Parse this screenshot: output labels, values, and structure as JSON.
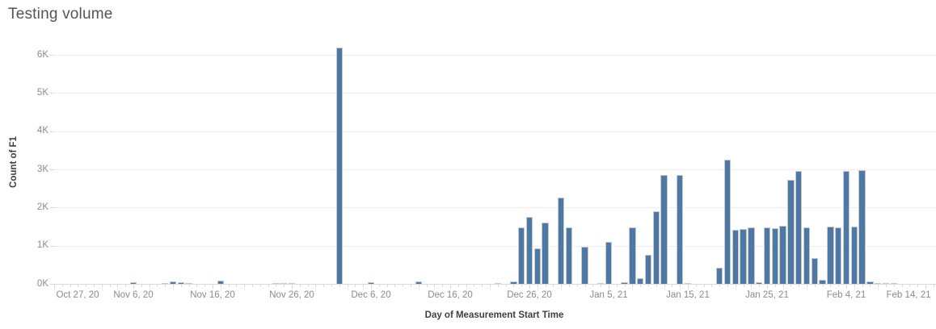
{
  "title": "Testing volume",
  "colors": {
    "bar_fill": "#4e79a7",
    "bar_border": "#c9c9c9",
    "gridline": "#efefef",
    "axis_line": "#d9d9d9",
    "tick_label": "#8b8b8b",
    "axis_title": "#3f3f3f",
    "title": "#545454"
  },
  "chart_data": {
    "type": "bar",
    "title": "Testing volume",
    "xlabel": "Day of Measurement Start Time",
    "ylabel": "Count of F1",
    "x_axis_type": "date",
    "x_start_date": "2020-10-27",
    "x_end_date": "2021-02-15",
    "ylim": [
      0,
      6530
    ],
    "grid": "horizontal",
    "legend": "none",
    "y_ticks": [
      {
        "value": 0,
        "label": "0K"
      },
      {
        "value": 1000,
        "label": "1K"
      },
      {
        "value": 2000,
        "label": "2K"
      },
      {
        "value": 3000,
        "label": "3K"
      },
      {
        "value": 4000,
        "label": "4K"
      },
      {
        "value": 5000,
        "label": "5K"
      },
      {
        "value": 6000,
        "label": "6K"
      }
    ],
    "x_ticks": [
      {
        "date": "2020-10-27",
        "label": "Oct 27, 20"
      },
      {
        "date": "2020-11-06",
        "label": "Nov 6, 20"
      },
      {
        "date": "2020-11-16",
        "label": "Nov 16, 20"
      },
      {
        "date": "2020-11-26",
        "label": "Nov 26, 20"
      },
      {
        "date": "2020-12-06",
        "label": "Dec 6, 20"
      },
      {
        "date": "2020-12-16",
        "label": "Dec 16, 20"
      },
      {
        "date": "2020-12-26",
        "label": "Dec 26, 20"
      },
      {
        "date": "2021-01-05",
        "label": "Jan 5, 21"
      },
      {
        "date": "2021-01-15",
        "label": "Jan 15, 21"
      },
      {
        "date": "2021-01-25",
        "label": "Jan 25, 21"
      },
      {
        "date": "2021-02-04",
        "label": "Feb 4, 21"
      },
      {
        "date": "2021-02-14",
        "label": "Feb 14, 21"
      }
    ],
    "bars": [
      {
        "date": "2020-11-06",
        "value": 45
      },
      {
        "date": "2020-11-10",
        "value": 20
      },
      {
        "date": "2020-11-11",
        "value": 65
      },
      {
        "date": "2020-11-12",
        "value": 50
      },
      {
        "date": "2020-11-13",
        "value": 20
      },
      {
        "date": "2020-11-17",
        "value": 90
      },
      {
        "date": "2020-11-24",
        "value": 20
      },
      {
        "date": "2020-11-25",
        "value": 20
      },
      {
        "date": "2020-11-26",
        "value": 20
      },
      {
        "date": "2020-12-02",
        "value": 6200
      },
      {
        "date": "2020-12-06",
        "value": 40
      },
      {
        "date": "2020-12-12",
        "value": 55
      },
      {
        "date": "2020-12-22",
        "value": 25
      },
      {
        "date": "2020-12-24",
        "value": 65
      },
      {
        "date": "2020-12-25",
        "value": 1480
      },
      {
        "date": "2020-12-26",
        "value": 1760
      },
      {
        "date": "2020-12-27",
        "value": 930
      },
      {
        "date": "2020-12-28",
        "value": 1610
      },
      {
        "date": "2020-12-30",
        "value": 2260
      },
      {
        "date": "2020-12-31",
        "value": 1470
      },
      {
        "date": "2021-01-02",
        "value": 980
      },
      {
        "date": "2021-01-04",
        "value": 25
      },
      {
        "date": "2021-01-05",
        "value": 1100
      },
      {
        "date": "2021-01-07",
        "value": 45
      },
      {
        "date": "2021-01-08",
        "value": 1480
      },
      {
        "date": "2021-01-09",
        "value": 150
      },
      {
        "date": "2021-01-10",
        "value": 760
      },
      {
        "date": "2021-01-11",
        "value": 1900
      },
      {
        "date": "2021-01-12",
        "value": 2860
      },
      {
        "date": "2021-01-14",
        "value": 2850
      },
      {
        "date": "2021-01-15",
        "value": 25
      },
      {
        "date": "2021-01-19",
        "value": 430
      },
      {
        "date": "2021-01-20",
        "value": 3250
      },
      {
        "date": "2021-01-21",
        "value": 1420
      },
      {
        "date": "2021-01-22",
        "value": 1430
      },
      {
        "date": "2021-01-23",
        "value": 1470
      },
      {
        "date": "2021-01-24",
        "value": 50
      },
      {
        "date": "2021-01-25",
        "value": 1470
      },
      {
        "date": "2021-01-26",
        "value": 1450
      },
      {
        "date": "2021-01-27",
        "value": 1520
      },
      {
        "date": "2021-01-28",
        "value": 2730
      },
      {
        "date": "2021-01-29",
        "value": 2950
      },
      {
        "date": "2021-01-30",
        "value": 1470
      },
      {
        "date": "2021-01-31",
        "value": 680
      },
      {
        "date": "2021-02-01",
        "value": 100
      },
      {
        "date": "2021-02-02",
        "value": 1500
      },
      {
        "date": "2021-02-03",
        "value": 1470
      },
      {
        "date": "2021-02-04",
        "value": 2960
      },
      {
        "date": "2021-02-05",
        "value": 1490
      },
      {
        "date": "2021-02-06",
        "value": 2980
      },
      {
        "date": "2021-02-07",
        "value": 60
      },
      {
        "date": "2021-02-08",
        "value": 25
      },
      {
        "date": "2021-02-09",
        "value": 20
      },
      {
        "date": "2021-02-10",
        "value": 20
      }
    ]
  }
}
